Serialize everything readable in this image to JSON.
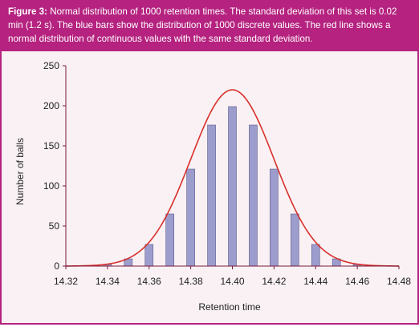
{
  "caption": {
    "label": "Figure 3:",
    "text": "Normal distribution of 1000 retention times. The standard deviation of this set is 0.02 min (1.2 s). The blue bars show the distribution of 1000 discrete values. The red line shows a normal distribution of continuous values with the same standard deviation."
  },
  "colors": {
    "frame": "#b5227f",
    "caption_background": "#b5227f",
    "plot_background": "#f9f1f4",
    "bar_fill": "#9c9ccd",
    "bar_stroke": "#5a5a8a",
    "curve": "#d9302a",
    "axis": "#7a1a3a"
  },
  "chart_data": {
    "type": "bar",
    "xlabel": "Retention time",
    "ylabel": "Number of balls",
    "xlim": [
      14.32,
      14.48
    ],
    "ylim": [
      0,
      250
    ],
    "xticks": [
      "14.32",
      "14.34",
      "14.36",
      "14.38",
      "14.40",
      "14.42",
      "14.44",
      "14.46",
      "14.48"
    ],
    "yticks": [
      "0",
      "50",
      "100",
      "150",
      "200",
      "250"
    ],
    "grid": false,
    "bars": {
      "x": [
        14.33,
        14.34,
        14.35,
        14.36,
        14.37,
        14.38,
        14.39,
        14.4,
        14.41,
        14.42,
        14.43,
        14.44,
        14.45,
        14.46,
        14.47
      ],
      "values": [
        0,
        2,
        9,
        27,
        65,
        121,
        176,
        199,
        176,
        121,
        65,
        27,
        9,
        2,
        0
      ]
    },
    "curve": {
      "distribution": "normal",
      "mean": 14.4,
      "sd": 0.02,
      "peak": 220,
      "x_range": [
        14.32,
        14.48
      ]
    }
  }
}
